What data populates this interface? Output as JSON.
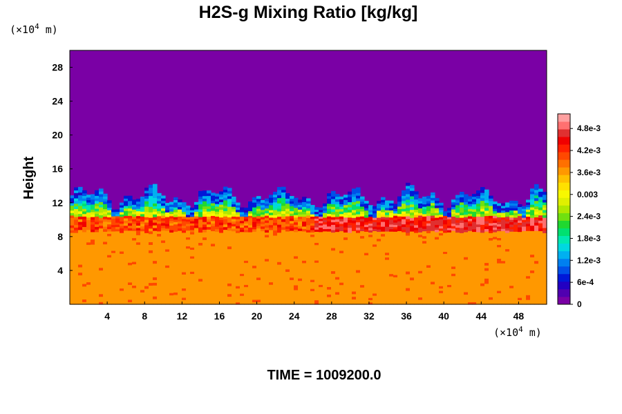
{
  "chart_data": {
    "type": "heatmap",
    "title": "H2S-g Mixing Ratio [kg/kg]",
    "ylabel": "Height",
    "x_unit": "(×10",
    "x_unit_exp": "4",
    "x_unit_tail": " m)",
    "y_unit": "(×10",
    "y_unit_exp": "4",
    "y_unit_tail": " m)",
    "xlim": [
      0,
      51
    ],
    "ylim": [
      0,
      30
    ],
    "x_ticks": [
      4,
      8,
      12,
      16,
      20,
      24,
      28,
      32,
      36,
      40,
      44,
      48
    ],
    "y_ticks": [
      4,
      8,
      12,
      16,
      20,
      24,
      28
    ],
    "colorbar": {
      "vmin": 0,
      "vmax": 0.0052,
      "ticks": [
        {
          "value": 0,
          "label": "0"
        },
        {
          "value": 0.0006,
          "label": "6e-4"
        },
        {
          "value": 0.0012,
          "label": "1.2e-3"
        },
        {
          "value": 0.0018,
          "label": "1.8e-3"
        },
        {
          "value": 0.0024,
          "label": "2.4e-3"
        },
        {
          "value": 0.003,
          "label": "0.003"
        },
        {
          "value": 0.0036,
          "label": "3.6e-3"
        },
        {
          "value": 0.0042,
          "label": "4.2e-3"
        },
        {
          "value": 0.0048,
          "label": "4.8e-3"
        }
      ],
      "colors": [
        "#7a00a5",
        "#5000b0",
        "#2200c2",
        "#0018d8",
        "#0050e8",
        "#0080f0",
        "#00b0f0",
        "#00d8e0",
        "#00e8b0",
        "#00e070",
        "#20d830",
        "#70e010",
        "#b0e800",
        "#e0f000",
        "#f8f800",
        "#ffe000",
        "#ffc000",
        "#ff9800",
        "#ff7000",
        "#ff4800",
        "#ff2000",
        "#f00000",
        "#e03030",
        "#ff7070",
        "#ffa0a0"
      ]
    },
    "field": {
      "description_levels": [
        {
          "height_from": 13.5,
          "height_to": 30,
          "value": 0
        },
        {
          "height_from": 11.5,
          "height_to": 13.5,
          "value": 0.0012
        },
        {
          "height_from": 9.5,
          "height_to": 11.5,
          "value": 0.0042
        },
        {
          "height_from": 0,
          "height_to": 9.5,
          "value": 0.0035
        }
      ]
    }
  },
  "footer": {
    "time_label": "TIME = 1009200.0"
  }
}
